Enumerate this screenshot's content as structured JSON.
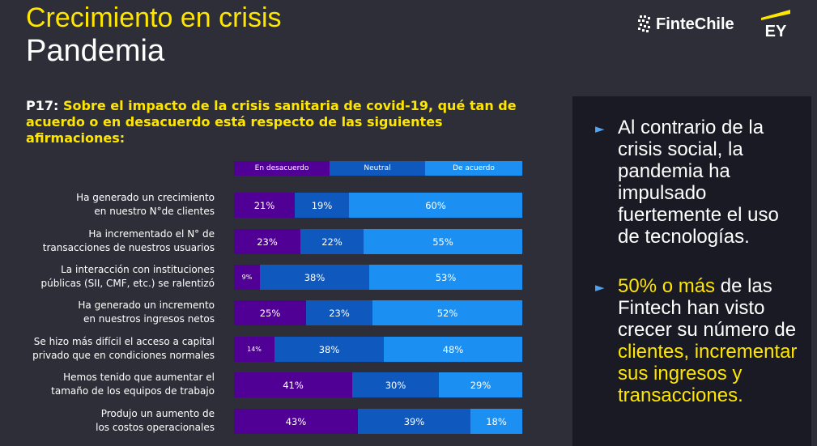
{
  "header": {
    "title_line1": "Crecimiento en crisis",
    "title_line2": "Pandemia",
    "logo_fintech": "FinteChile",
    "logo_ey": "EY"
  },
  "question": {
    "number": "P17:",
    "text": "Sobre el impacto de la crisis sanitaria de covid-19, qué tan de acuerdo o en desacuerdo está respecto de las siguientes afirmaciones:"
  },
  "colors": {
    "desacuerdo": "#500095",
    "neutral": "#0f58be",
    "acuerdo": "#1b90f2",
    "accent_yellow": "#ffe600",
    "background": "#2e2e38",
    "panel": "#1a1a24"
  },
  "chart_data": {
    "type": "bar",
    "stacked": true,
    "orientation": "horizontal",
    "percent_scale": true,
    "legend_position": "top",
    "categories": [
      [
        "Ha generado un crecimiento",
        "en nuestro N°de clientes"
      ],
      [
        "Ha incrementado el N° de",
        "transacciones de nuestros usuarios"
      ],
      [
        "La interacción con instituciones",
        "públicas (SII, CMF, etc.) se ralentizó"
      ],
      [
        "Ha generado un incremento",
        "en nuestros ingresos netos"
      ],
      [
        "Se hizo más difícil el acceso a capital",
        "privado que en condiciones normales"
      ],
      [
        "Hemos tenido que aumentar el",
        "tamaño de los equipos de trabajo"
      ],
      [
        "Produjo un aumento de",
        "los costos operacionales"
      ]
    ],
    "series": [
      {
        "name": "En desacuerdo",
        "values": [
          21,
          23,
          9,
          25,
          14,
          41,
          43
        ],
        "labels": [
          "21%",
          "23%",
          "9%",
          "25%",
          "14%",
          "41%",
          "43%"
        ]
      },
      {
        "name": "Neutral",
        "values": [
          19,
          22,
          38,
          23,
          38,
          30,
          39
        ],
        "labels": [
          "19%",
          "22%",
          "38%",
          "23%",
          "38%",
          "30%",
          "39%"
        ]
      },
      {
        "name": "De acuerdo",
        "values": [
          60,
          55,
          53,
          52,
          48,
          29,
          18
        ],
        "labels": [
          "60%",
          "55%",
          "53%",
          "52%",
          "48%",
          "29%",
          "18%"
        ]
      }
    ]
  },
  "panel": {
    "bullet1": "Al contrario de la crisis social, la pandemia ha impulsado fuertemente el uso de tecnologías.",
    "bullet2_highlight": "50% o más",
    "bullet2_a": " de las Fintech han visto crecer su número de ",
    "bullet2_highlight2": "clientes, incrementar sus ingresos y transacciones."
  }
}
